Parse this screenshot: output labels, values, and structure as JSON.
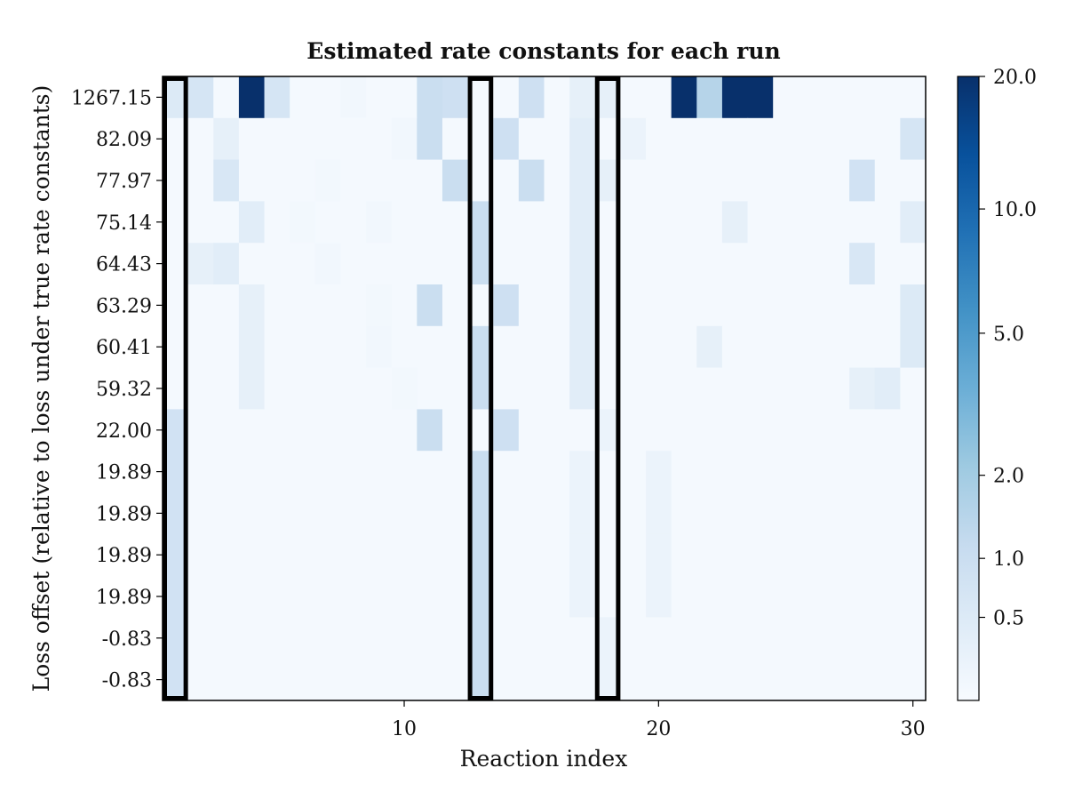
{
  "chart_data": {
    "type": "heatmap",
    "title": "Estimated rate constants for each run",
    "xlabel": "Reaction index",
    "ylabel": "Loss offset (relative to loss under true rate constants)",
    "x_ticks": [
      10,
      20,
      30
    ],
    "x_range": [
      0.5,
      30.5
    ],
    "row_labels": [
      "1267.15",
      "82.09",
      "77.97",
      "75.14",
      "64.43",
      "63.29",
      "60.41",
      "59.32",
      "22.00",
      "19.89",
      "19.89",
      "19.89",
      "19.89",
      "-0.83",
      "-0.83"
    ],
    "colormap": "Blues",
    "color_scale": "symlog",
    "vmin": 0,
    "vmax": 20,
    "colorbar_ticks": [
      "0.5",
      "1.0",
      "2.0",
      "5.0",
      "10.0",
      "20.0"
    ],
    "colorbar_tick_values": [
      0.5,
      1.0,
      2.0,
      5.0,
      10.0,
      20.0
    ],
    "highlighted_columns": [
      1,
      13,
      18
    ],
    "values": [
      [
        0.5,
        0.7,
        0.05,
        20,
        0.7,
        0.05,
        0.05,
        0.1,
        0.05,
        0.05,
        1.0,
        0.9,
        0.05,
        0.05,
        0.9,
        0.05,
        0.3,
        0.3,
        0.05,
        0.05,
        20,
        1.5,
        20,
        20,
        0.05,
        0.05,
        0.05,
        0.05,
        0.05,
        0.05
      ],
      [
        0.05,
        0.05,
        0.3,
        0.05,
        0.05,
        0.05,
        0.05,
        0.05,
        0.05,
        0.1,
        1.0,
        0.05,
        0.05,
        0.9,
        0.05,
        0.05,
        0.4,
        0.05,
        0.2,
        0.05,
        0.05,
        0.05,
        0.05,
        0.05,
        0.05,
        0.05,
        0.05,
        0.05,
        0.05,
        0.7
      ],
      [
        0.05,
        0.05,
        0.6,
        0.05,
        0.05,
        0.05,
        0.08,
        0.05,
        0.05,
        0.05,
        0.05,
        1.0,
        0.05,
        0.05,
        1.0,
        0.05,
        0.4,
        0.3,
        0.05,
        0.05,
        0.05,
        0.05,
        0.05,
        0.05,
        0.05,
        0.05,
        0.05,
        0.8,
        0.05,
        0.05
      ],
      [
        0.05,
        0.05,
        0.05,
        0.4,
        0.05,
        0.08,
        0.05,
        0.05,
        0.1,
        0.05,
        0.05,
        0.05,
        1.0,
        0.05,
        0.05,
        0.05,
        0.4,
        0.05,
        0.05,
        0.05,
        0.05,
        0.05,
        0.3,
        0.05,
        0.05,
        0.05,
        0.05,
        0.05,
        0.05,
        0.4
      ],
      [
        0.05,
        0.3,
        0.4,
        0.05,
        0.05,
        0.05,
        0.1,
        0.05,
        0.05,
        0.05,
        0.05,
        0.05,
        1.0,
        0.05,
        0.05,
        0.05,
        0.4,
        0.05,
        0.05,
        0.05,
        0.05,
        0.05,
        0.05,
        0.05,
        0.05,
        0.05,
        0.05,
        0.6,
        0.05,
        0.05
      ],
      [
        0.05,
        0.05,
        0.05,
        0.3,
        0.05,
        0.05,
        0.05,
        0.05,
        0.08,
        0.05,
        1.0,
        0.05,
        0.05,
        0.9,
        0.05,
        0.05,
        0.4,
        0.05,
        0.05,
        0.05,
        0.05,
        0.05,
        0.05,
        0.05,
        0.05,
        0.05,
        0.05,
        0.05,
        0.05,
        0.5
      ],
      [
        0.05,
        0.05,
        0.05,
        0.3,
        0.05,
        0.05,
        0.05,
        0.05,
        0.1,
        0.05,
        0.05,
        0.05,
        1.0,
        0.05,
        0.05,
        0.05,
        0.4,
        0.05,
        0.05,
        0.05,
        0.05,
        0.3,
        0.05,
        0.05,
        0.05,
        0.05,
        0.05,
        0.05,
        0.05,
        0.5
      ],
      [
        0.05,
        0.05,
        0.05,
        0.3,
        0.05,
        0.05,
        0.05,
        0.05,
        0.05,
        0.08,
        0.05,
        0.05,
        1.0,
        0.05,
        0.05,
        0.05,
        0.4,
        0.05,
        0.05,
        0.05,
        0.05,
        0.05,
        0.05,
        0.05,
        0.05,
        0.05,
        0.05,
        0.3,
        0.4,
        0.05
      ],
      [
        0.8,
        0.05,
        0.05,
        0.05,
        0.05,
        0.05,
        0.05,
        0.05,
        0.05,
        0.05,
        1.0,
        0.05,
        0.05,
        0.9,
        0.05,
        0.05,
        0.05,
        0.2,
        0.05,
        0.05,
        0.05,
        0.05,
        0.05,
        0.05,
        0.05,
        0.05,
        0.05,
        0.05,
        0.05,
        0.05
      ],
      [
        0.8,
        0.05,
        0.05,
        0.05,
        0.05,
        0.05,
        0.05,
        0.05,
        0.05,
        0.05,
        0.05,
        0.05,
        1.0,
        0.05,
        0.05,
        0.05,
        0.2,
        0.05,
        0.05,
        0.2,
        0.05,
        0.05,
        0.05,
        0.05,
        0.05,
        0.05,
        0.05,
        0.05,
        0.05,
        0.05
      ],
      [
        0.8,
        0.05,
        0.05,
        0.05,
        0.05,
        0.05,
        0.05,
        0.05,
        0.05,
        0.05,
        0.05,
        0.05,
        1.0,
        0.05,
        0.05,
        0.05,
        0.2,
        0.05,
        0.05,
        0.2,
        0.05,
        0.05,
        0.05,
        0.05,
        0.05,
        0.05,
        0.05,
        0.05,
        0.05,
        0.05
      ],
      [
        0.8,
        0.05,
        0.05,
        0.05,
        0.05,
        0.05,
        0.05,
        0.05,
        0.05,
        0.05,
        0.05,
        0.05,
        1.0,
        0.05,
        0.05,
        0.05,
        0.2,
        0.05,
        0.05,
        0.2,
        0.05,
        0.05,
        0.05,
        0.05,
        0.05,
        0.05,
        0.05,
        0.05,
        0.05,
        0.05
      ],
      [
        0.8,
        0.05,
        0.05,
        0.05,
        0.05,
        0.05,
        0.05,
        0.05,
        0.05,
        0.05,
        0.05,
        0.05,
        1.0,
        0.05,
        0.05,
        0.05,
        0.2,
        0.05,
        0.05,
        0.2,
        0.05,
        0.05,
        0.05,
        0.05,
        0.05,
        0.05,
        0.05,
        0.05,
        0.05,
        0.05
      ],
      [
        0.8,
        0.05,
        0.05,
        0.05,
        0.05,
        0.05,
        0.05,
        0.05,
        0.05,
        0.05,
        0.05,
        0.05,
        1.0,
        0.05,
        0.05,
        0.05,
        0.05,
        0.2,
        0.05,
        0.05,
        0.05,
        0.05,
        0.05,
        0.05,
        0.05,
        0.05,
        0.05,
        0.05,
        0.05,
        0.05
      ],
      [
        0.8,
        0.05,
        0.05,
        0.05,
        0.05,
        0.05,
        0.05,
        0.05,
        0.05,
        0.05,
        0.05,
        0.05,
        1.0,
        0.05,
        0.05,
        0.05,
        0.05,
        0.2,
        0.05,
        0.05,
        0.05,
        0.05,
        0.05,
        0.05,
        0.05,
        0.05,
        0.05,
        0.05,
        0.05,
        0.05
      ]
    ]
  }
}
